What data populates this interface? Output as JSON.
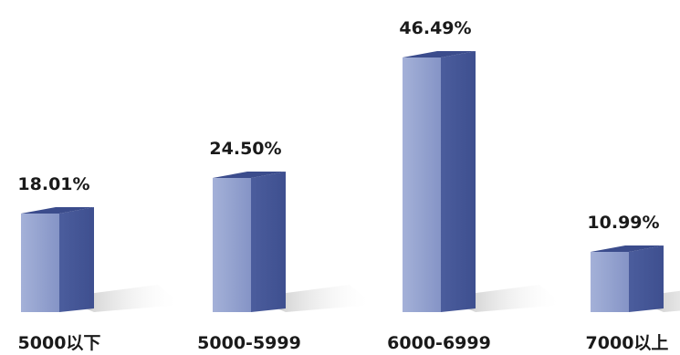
{
  "chart_data": {
    "type": "bar",
    "categories": [
      "5000以下",
      "5000-5999",
      "6000-6999",
      "7000以上"
    ],
    "values": [
      18.01,
      24.5,
      46.49,
      10.99
    ],
    "value_labels": [
      "18.01%",
      "24.50%",
      "46.49%",
      "10.99%"
    ],
    "unit": "%",
    "title": "",
    "xlabel": "",
    "ylabel": "",
    "ylim": [
      0,
      50
    ],
    "grid": false,
    "legend": "none",
    "style": "3d-column",
    "colors": {
      "front": "#8f9fcc",
      "side": "#4a5c9c",
      "top": "#3b4c8c",
      "shadow": "#bfbfbf"
    }
  }
}
